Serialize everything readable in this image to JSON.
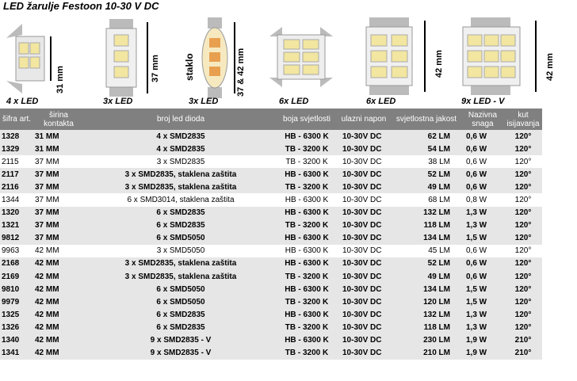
{
  "title": "LED žarulje Festoon 10-30 V DC",
  "bulbs": [
    {
      "label": "4 x LED",
      "dim": "31 mm"
    },
    {
      "label": "3x LED",
      "dim": "37 mm"
    },
    {
      "label": "3x LED",
      "dim": "37 & 42 mm",
      "extra": "staklo"
    },
    {
      "label": "6x LED",
      "dim": ""
    },
    {
      "label": "6x LED",
      "dim": "42 mm"
    },
    {
      "label": "9x LED  - V",
      "dim": "42 mm"
    }
  ],
  "headers": [
    "šifra art.",
    "širina kontakta",
    "broj led dioda",
    "boja svjetlosti",
    "ulazni napon",
    "svjetlostna jakost",
    "Nazivna snaga",
    "kut isijavanja"
  ],
  "rows": [
    {
      "bold": true,
      "alt": true,
      "cells": [
        "1328",
        "31 MM",
        "4 x SMD2835",
        "HB - 6300 K",
        "10-30V DC",
        "62 LM",
        "0,6 W",
        "120°"
      ]
    },
    {
      "bold": true,
      "alt": true,
      "cells": [
        "1329",
        "31 MM",
        "4 x SMD2835",
        "TB - 3200 K",
        "10-30V DC",
        "54 LM",
        "0,6 W",
        "120°"
      ]
    },
    {
      "bold": false,
      "alt": false,
      "cells": [
        "2115",
        "37 MM",
        "3 x SMD2835",
        "TB - 3200 K",
        "10-30V DC",
        "38 LM",
        "0,6 W",
        "120°"
      ]
    },
    {
      "bold": true,
      "alt": true,
      "cells": [
        "2117",
        "37 MM",
        "3 x SMD2835, staklena zaštita",
        "HB - 6300 K",
        "10-30V DC",
        "52 LM",
        "0,6 W",
        "120°"
      ]
    },
    {
      "bold": true,
      "alt": true,
      "cells": [
        "2116",
        "37 MM",
        "3 x SMD2835, staklena zaštita",
        "TB - 3200 K",
        "10-30V DC",
        "49 LM",
        "0,6 W",
        "120°"
      ]
    },
    {
      "bold": false,
      "alt": false,
      "cells": [
        "1344",
        "37 MM",
        "6 x SMD3014, staklena zaštita",
        "HB - 6300 K",
        "10-30V DC",
        "68 LM",
        "0,8 W",
        "120°"
      ]
    },
    {
      "bold": true,
      "alt": true,
      "cells": [
        "1320",
        "37 MM",
        "6 x SMD2835",
        "HB - 6300 K",
        "10-30V DC",
        "132 LM",
        "1,3 W",
        "120°"
      ]
    },
    {
      "bold": true,
      "alt": true,
      "cells": [
        "1321",
        "37 MM",
        "6 x SMD2835",
        "TB - 3200 K",
        "10-30V DC",
        "118 LM",
        "1,3 W",
        "120°"
      ]
    },
    {
      "bold": true,
      "alt": true,
      "cells": [
        "9812",
        "37 MM",
        "6 x SMD5050",
        "HB - 6300 K",
        "10-30V DC",
        "134 LM",
        "1,5 W",
        "120°"
      ]
    },
    {
      "bold": false,
      "alt": false,
      "cells": [
        "9963",
        "42 MM",
        "3 x SMD5050",
        "HB - 6300 K",
        "10-30V DC",
        "45 LM",
        "0,6 W",
        "120°"
      ]
    },
    {
      "bold": true,
      "alt": true,
      "cells": [
        "2168",
        "42 MM",
        "3 x SMD2835, staklena zaštita",
        "HB - 6300 K",
        "10-30V DC",
        "52 LM",
        "0,6 W",
        "120°"
      ]
    },
    {
      "bold": true,
      "alt": true,
      "cells": [
        "2169",
        "42 MM",
        "3 x SMD2835, staklena zaštita",
        "TB - 3200 K",
        "10-30V DC",
        "49 LM",
        "0,6 W",
        "120°"
      ]
    },
    {
      "bold": true,
      "alt": true,
      "cells": [
        "9810",
        "42 MM",
        "6 x SMD5050",
        "HB - 6300 K",
        "10-30V DC",
        "134  LM",
        "1,5 W",
        "120°"
      ]
    },
    {
      "bold": true,
      "alt": true,
      "cells": [
        "9979",
        "42 MM",
        "6 x SMD5050",
        "TB - 3200 K",
        "10-30V DC",
        "120 LM",
        "1,5 W",
        "120°"
      ]
    },
    {
      "bold": true,
      "alt": true,
      "cells": [
        "1325",
        "42 MM",
        "6 x SMD2835",
        "HB - 6300 K",
        "10-30V DC",
        "132 LM",
        "1,3 W",
        "120°"
      ]
    },
    {
      "bold": true,
      "alt": true,
      "cells": [
        "1326",
        "42 MM",
        "6 x SMD2835",
        "TB - 3200 K",
        "10-30V DC",
        "118 LM",
        "1,3 W",
        "120°"
      ]
    },
    {
      "bold": true,
      "alt": true,
      "cells": [
        "1340",
        "42 MM",
        "9 x SMD2835 - V",
        "HB - 6300 K",
        "10-30V DC",
        "230 LM",
        "1,9 W",
        "210°"
      ]
    },
    {
      "bold": true,
      "alt": true,
      "cells": [
        "1341",
        "42 MM",
        "9 x SMD2835 - V",
        "TB - 3200 K",
        "10-30V DC",
        "210 LM",
        "1,9 W",
        "210°"
      ]
    }
  ]
}
